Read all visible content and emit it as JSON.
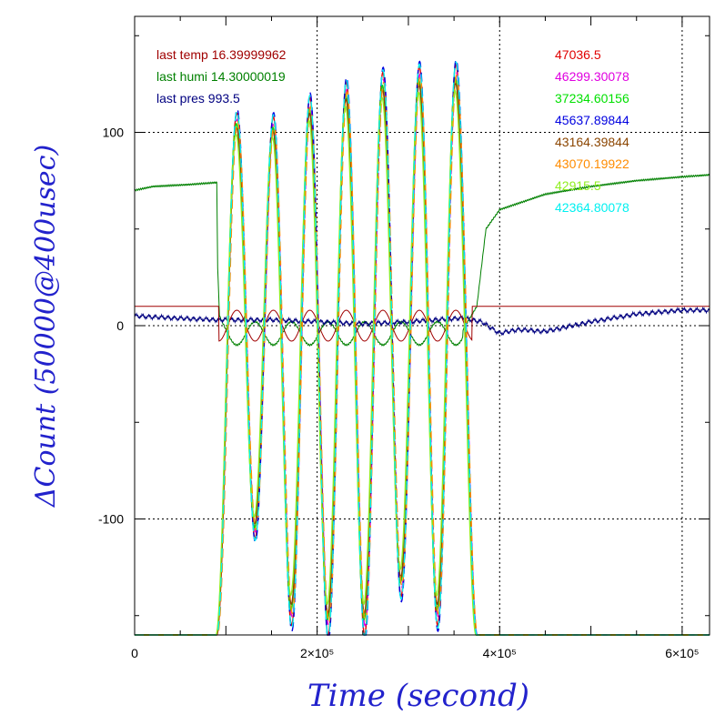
{
  "chart_data": {
    "type": "line",
    "xlabel": "Time (second)",
    "ylabel": "ΔCount (50000@400usec)",
    "xlim": [
      0,
      630000
    ],
    "ylim": [
      -160,
      160
    ],
    "x_ticks": [
      {
        "value": 0,
        "label": "0"
      },
      {
        "value": 200000,
        "label": "2×10⁵"
      },
      {
        "value": 400000,
        "label": "4×10⁵"
      },
      {
        "value": 600000,
        "label": "6×10⁵"
      }
    ],
    "y_ticks": [
      {
        "value": 100,
        "label": "100"
      },
      {
        "value": 0,
        "label": "0"
      },
      {
        "value": -100,
        "label": "-100"
      }
    ],
    "grid": true,
    "legend_left": [
      {
        "text": "last temp 16.39999962",
        "color": "#a00000"
      },
      {
        "text": "last humi 14.30000019",
        "color": "#008000"
      },
      {
        "text": "last pres 993.5",
        "color": "#000080"
      }
    ],
    "legend_right": [
      {
        "text": "47036.5",
        "color": "#e00000"
      },
      {
        "text": "46299.30078",
        "color": "#e000e0"
      },
      {
        "text": "37234.60156",
        "color": "#00e000"
      },
      {
        "text": "45637.89844",
        "color": "#0000e0"
      },
      {
        "text": "43164.39844",
        "color": "#8b4500"
      },
      {
        "text": "43070.19922",
        "color": "#ff8c00"
      },
      {
        "text": "42915.5",
        "color": "#90ee20"
      },
      {
        "text": "42364.80078",
        "color": "#00f0f0"
      }
    ],
    "oscillation": {
      "start_x": 90000,
      "end_x": 375000,
      "period_x": 40000,
      "peak_x": [
        112000,
        152000,
        192000,
        232000,
        272000,
        312000,
        352000
      ],
      "peak_y": [
        110,
        108,
        118,
        126,
        131,
        134,
        135
      ],
      "trough_x": [
        132000,
        172000,
        212000,
        252000,
        292000,
        332000
      ],
      "trough_y": [
        -110,
        -155,
        -160,
        -160,
        -140,
        -155
      ]
    },
    "series": [
      {
        "color": "#e00000",
        "kind": "main",
        "phase_x": 0,
        "amp_scale": 1.0,
        "offset_y": -160
      },
      {
        "color": "#e000e0",
        "kind": "main",
        "phase_x": 500,
        "amp_scale": 0.97,
        "offset_y": -160
      },
      {
        "color": "#00e000",
        "kind": "main",
        "phase_x": -600,
        "amp_scale": 0.95,
        "offset_y": -160
      },
      {
        "color": "#0000e0",
        "kind": "main",
        "phase_x": 300,
        "amp_scale": 1.02,
        "offset_y": -160
      },
      {
        "color": "#8b4500",
        "kind": "main",
        "phase_x": -300,
        "amp_scale": 0.93,
        "offset_y": -160
      },
      {
        "color": "#ff8c00",
        "kind": "main",
        "phase_x": 800,
        "amp_scale": 0.96,
        "offset_y": -160
      },
      {
        "color": "#90ee20",
        "kind": "main",
        "phase_x": -900,
        "amp_scale": 0.9,
        "offset_y": -160
      },
      {
        "color": "#00f0f0",
        "kind": "main",
        "phase_x": 100,
        "amp_scale": 1.01,
        "offset_y": -160
      }
    ],
    "temperature": {
      "color": "#a00000",
      "before": 10,
      "after": 10,
      "osc_amp": 8,
      "osc_center": 0
    },
    "humidity": {
      "color": "#008000",
      "points": [
        [
          0,
          70
        ],
        [
          20000,
          72
        ],
        [
          60000,
          73
        ],
        [
          88000,
          74
        ],
        [
          90000,
          74
        ],
        [
          91000,
          30
        ],
        [
          93000,
          5
        ],
        [
          100000,
          -2
        ],
        [
          360000,
          -2
        ],
        [
          375000,
          10
        ],
        [
          385000,
          50
        ],
        [
          400000,
          60
        ],
        [
          450000,
          68
        ],
        [
          500000,
          72
        ],
        [
          550000,
          75
        ],
        [
          600000,
          77
        ],
        [
          630000,
          78
        ]
      ],
      "osc_amp": 6,
      "osc_center": -4
    },
    "pressure": {
      "color": "#000080",
      "points": [
        [
          0,
          5
        ],
        [
          40000,
          4
        ],
        [
          90000,
          3
        ],
        [
          150000,
          3
        ],
        [
          250000,
          1
        ],
        [
          300000,
          2
        ],
        [
          360000,
          4
        ],
        [
          380000,
          2
        ],
        [
          400000,
          -4
        ],
        [
          420000,
          -2
        ],
        [
          450000,
          -3
        ],
        [
          500000,
          2
        ],
        [
          550000,
          6
        ],
        [
          600000,
          8
        ],
        [
          630000,
          8
        ]
      ]
    }
  }
}
